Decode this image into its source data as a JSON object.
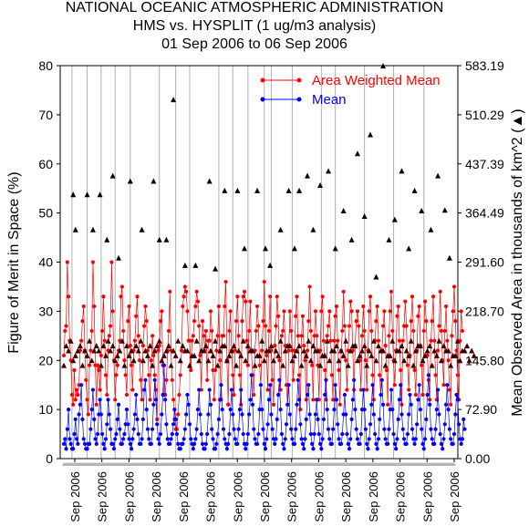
{
  "title_lines": [
    "NATIONAL OCEANIC ATMOSPHERIC ADMINISTRATION",
    "HMS vs. HYSPLIT (1 ug/m3 analysis)",
    "01 Sep 2006 to 06 Sep 2006"
  ],
  "chart_data": {
    "type": "scatter",
    "title": "NATIONAL OCEANIC ATMOSPHERIC ADMINISTRATION / HMS vs. HYSPLIT (1 ug/m3 analysis) / 01 Sep 2006 to 06 Sep 2006",
    "ylabel": "Figure of Merit in Space (%)",
    "y2label": "Mean Observed Area in thousands of km^2 (▲)",
    "ylim": [
      0,
      80
    ],
    "y2lim": [
      0,
      583.19
    ],
    "yticks": [
      "0",
      "10",
      "20",
      "30",
      "40",
      "50",
      "60",
      "70",
      "80"
    ],
    "y2ticks": [
      "0.00",
      "72.90",
      "145.80",
      "218.70",
      "291.60",
      "364.49",
      "437.39",
      "510.29",
      "583.19"
    ],
    "xtick_label": "Sep 2006",
    "xtick_count": 15,
    "legend_position": "top-right",
    "legend": [
      {
        "label": "Area Weighted Mean",
        "color": "#ff0000"
      },
      {
        "label": "Mean",
        "color": "#0000ff"
      }
    ],
    "colors": {
      "awm": "#ff0000",
      "mean": "#0000ff",
      "area": "#000000",
      "area_dark": "#3a0000",
      "rug": "#b4b4b4"
    },
    "x_count": 336,
    "series": [
      {
        "name": "Area Weighted Mean",
        "marker": "circle",
        "color": "#ff0000",
        "values": [
          21,
          26,
          27,
          40,
          33,
          24,
          20,
          13,
          11,
          18,
          12,
          14,
          13,
          15,
          22,
          24,
          28,
          31,
          22,
          16,
          12,
          9,
          19,
          22,
          26,
          40,
          31,
          19,
          11,
          19,
          18,
          14,
          21,
          26,
          33,
          24,
          17,
          13,
          22,
          25,
          27,
          40,
          30,
          20,
          12,
          17,
          19,
          22,
          24,
          33,
          35,
          26,
          20,
          17,
          13,
          28,
          31,
          23,
          19,
          14,
          22,
          24,
          29,
          33,
          25,
          20,
          16,
          12,
          23,
          27,
          31,
          28,
          22,
          17,
          12,
          20,
          25,
          21,
          17,
          14,
          8,
          22,
          23,
          28,
          30,
          19,
          13,
          13,
          16,
          22,
          26,
          34,
          22,
          16,
          12,
          8,
          6,
          6,
          9,
          13,
          17,
          22,
          31,
          33,
          35,
          34,
          30,
          24,
          24,
          18,
          24,
          25,
          28,
          31,
          34,
          32,
          27,
          21,
          14,
          28,
          25,
          22,
          26,
          16,
          24,
          24,
          30,
          26,
          18,
          12,
          18,
          22,
          25,
          31,
          20,
          12,
          25,
          25,
          31,
          36,
          20,
          11,
          26,
          30,
          22,
          17,
          13,
          22,
          28,
          33,
          25,
          17,
          11,
          28,
          33,
          34,
          32,
          24,
          19,
          26,
          32,
          22,
          17,
          13,
          22,
          26,
          31,
          27,
          19,
          15,
          22,
          28,
          36,
          27,
          21,
          14,
          26,
          33,
          22,
          16,
          11,
          23,
          27,
          33,
          29,
          20,
          14,
          25,
          26,
          30,
          23,
          15,
          11,
          22,
          30,
          26,
          22,
          16,
          22,
          29,
          33,
          25,
          17,
          10,
          25,
          29,
          23,
          20,
          12,
          22,
          28,
          35,
          26,
          19,
          12,
          25,
          30,
          25,
          19,
          12,
          22,
          30,
          33,
          24,
          18,
          12,
          25,
          27,
          30,
          24,
          17,
          12,
          24,
          29,
          31,
          24,
          18,
          11,
          22,
          26,
          34,
          27,
          20,
          14,
          22,
          27,
          32,
          30,
          22,
          14,
          23,
          28,
          30,
          27,
          20,
          14,
          25,
          31,
          26,
          20,
          14,
          22,
          30,
          33,
          26,
          17,
          12,
          24,
          28,
          31,
          24,
          17,
          13,
          22,
          27,
          30,
          23,
          18,
          11,
          25,
          30,
          34,
          26,
          20,
          15,
          22,
          29,
          31,
          24,
          18,
          11,
          24,
          27,
          32,
          27,
          19,
          14,
          21,
          28,
          33,
          26,
          18,
          13,
          22,
          29,
          31,
          23,
          19,
          13,
          26,
          32,
          28,
          21,
          16,
          12,
          24,
          28,
          33,
          24,
          17,
          12,
          22,
          27,
          34,
          26,
          20,
          15,
          26,
          31,
          24,
          20,
          14,
          11,
          25,
          30,
          35,
          28,
          22,
          17,
          12,
          24,
          30,
          26
        ]
      },
      {
        "name": "Mean",
        "marker": "circle",
        "color": "#0000ff",
        "values": [
          3,
          4,
          2,
          6,
          10,
          4,
          3,
          2,
          2,
          5,
          8,
          4,
          3,
          9,
          11,
          15,
          8,
          4,
          3,
          2,
          2,
          3,
          3,
          6,
          10,
          14,
          8,
          4,
          3,
          5,
          9,
          12,
          9,
          5,
          3,
          2,
          4,
          7,
          12,
          9,
          6,
          3,
          3,
          2,
          4,
          5,
          8,
          11,
          6,
          3,
          3,
          4,
          5,
          7,
          10,
          7,
          4,
          3,
          2,
          4,
          6,
          9,
          13,
          8,
          5,
          3,
          3,
          4,
          8,
          14,
          16,
          10,
          6,
          4,
          3,
          3,
          6,
          11,
          16,
          12,
          7,
          4,
          3,
          5,
          9,
          13,
          19,
          12,
          7,
          4,
          3,
          3,
          4,
          5,
          7,
          10,
          8,
          5,
          3,
          2,
          2,
          3,
          3,
          4,
          6,
          9,
          13,
          11,
          7,
          4,
          3,
          2,
          3,
          4,
          6,
          10,
          14,
          9,
          5,
          3,
          2,
          2,
          3,
          5,
          9,
          14,
          11,
          6,
          4,
          2,
          2,
          3,
          5,
          8,
          12,
          15,
          10,
          6,
          4,
          3,
          2,
          3,
          5,
          10,
          14,
          9,
          6,
          4,
          3,
          3,
          6,
          10,
          14,
          9,
          5,
          3,
          2,
          3,
          5,
          9,
          12,
          17,
          11,
          6,
          4,
          3,
          3,
          5,
          10,
          15,
          10,
          6,
          3,
          2,
          4,
          7,
          12,
          15,
          9,
          6,
          4,
          3,
          4,
          8,
          13,
          16,
          10,
          5,
          3,
          2,
          4,
          7,
          11,
          15,
          9,
          6,
          4,
          3,
          3,
          6,
          11,
          16,
          12,
          7,
          4,
          3,
          2,
          4,
          8,
          13,
          15,
          9,
          5,
          3,
          2,
          5,
          9,
          12,
          8,
          5,
          3,
          2,
          4,
          8,
          13,
          16,
          10,
          6,
          4,
          3,
          3,
          6,
          10,
          15,
          12,
          7,
          4,
          3,
          3,
          5,
          9,
          13,
          9,
          5,
          3,
          2,
          4,
          8,
          12,
          16,
          10,
          6,
          4,
          3,
          3,
          5,
          10,
          14,
          10,
          6,
          3,
          2,
          4,
          7,
          11,
          15,
          9,
          5,
          3,
          2,
          4,
          8,
          13,
          16,
          11,
          6,
          4,
          3,
          3,
          6,
          10,
          14,
          10,
          5,
          3,
          2,
          4,
          8,
          12,
          15,
          9,
          6,
          4,
          3,
          3,
          5,
          9,
          13,
          11,
          6,
          4,
          3,
          4,
          7,
          12,
          15,
          10,
          6,
          3,
          2,
          4,
          8,
          13,
          17,
          11,
          6,
          4,
          3,
          3,
          6,
          10,
          14,
          9,
          5,
          3,
          2,
          4,
          7,
          11,
          15,
          10,
          6,
          4,
          3,
          3,
          5,
          9,
          13,
          12,
          7,
          4,
          3,
          4,
          8,
          6
        ]
      },
      {
        "name": "Mean Observed Area",
        "marker": "triangle",
        "axis": "y2",
        "color": "#000000",
        "values": [
          19,
          26,
          23,
          18,
          22,
          29,
          24,
          17,
          20,
          26,
          21,
          16,
          22,
          27,
          23,
          18,
          19,
          25,
          22,
          17,
          21,
          28,
          24,
          18,
          20,
          26,
          22,
          17,
          23,
          27,
          22,
          18,
          19,
          26,
          23,
          17,
          21,
          28,
          24,
          19,
          22,
          27,
          23,
          18,
          20,
          25,
          21,
          16,
          22,
          29,
          24,
          18,
          19,
          26,
          23,
          17,
          21,
          27,
          22,
          18,
          20,
          26,
          23,
          17,
          22,
          28,
          24,
          19,
          20,
          25,
          22,
          16,
          21,
          27,
          23,
          18,
          19,
          26,
          22,
          17,
          23,
          28,
          24,
          18,
          20,
          25,
          21,
          17,
          22,
          27,
          23,
          18,
          19,
          26,
          22,
          17,
          21,
          28,
          24,
          19,
          20,
          26,
          23,
          17,
          22,
          27,
          22,
          18,
          19,
          25,
          21,
          16,
          21,
          27,
          24,
          18,
          20,
          26,
          22,
          17,
          22,
          28,
          23,
          19,
          20,
          25,
          22,
          17,
          21,
          27,
          24,
          18,
          19,
          26,
          22,
          16,
          23,
          28,
          23,
          18,
          20,
          25,
          21,
          17,
          22,
          27,
          23,
          18,
          19,
          26,
          22,
          17,
          21,
          28,
          24,
          19,
          20,
          26,
          23,
          17,
          22,
          27,
          22,
          18,
          19,
          25,
          21,
          16,
          21,
          27,
          24,
          18,
          20,
          26,
          22,
          17,
          22,
          28,
          23,
          19,
          20,
          25,
          22,
          17,
          21,
          27,
          24,
          18,
          19,
          26,
          22,
          16,
          23,
          28,
          23,
          18,
          20,
          25,
          21,
          17,
          22,
          27,
          23,
          18,
          19,
          26,
          22,
          17,
          21,
          28,
          24,
          19,
          20,
          26,
          23,
          17,
          22,
          27,
          22,
          18,
          19,
          25,
          21,
          16,
          21,
          27,
          24,
          18,
          20,
          26,
          22,
          17,
          22,
          28,
          23,
          19,
          20,
          25,
          22,
          17,
          21,
          27,
          24,
          18,
          19,
          26,
          22,
          16,
          23,
          28,
          23,
          18,
          20,
          25,
          21,
          17,
          22,
          27,
          23,
          18,
          19,
          26,
          22,
          17,
          21,
          28,
          24,
          19,
          20,
          26,
          23,
          17,
          22,
          27,
          22,
          18,
          19,
          25,
          21,
          16,
          21,
          27,
          24,
          18,
          20,
          26,
          22,
          17,
          22,
          28,
          23,
          19,
          20,
          25,
          22,
          17,
          21,
          27,
          24,
          18,
          19,
          26,
          22,
          16,
          23,
          28,
          23,
          18,
          20,
          25,
          21,
          17,
          22,
          27,
          23,
          18,
          19,
          26,
          22,
          17,
          21,
          28,
          24,
          19,
          20,
          26,
          23,
          17,
          22,
          27,
          22,
          18,
          19,
          25,
          21,
          16,
          21,
          27,
          24,
          18,
          20,
          26,
          22,
          17,
          22,
          28,
          23,
          19,
          20,
          25,
          22,
          17,
          21,
          27
        ]
      },
      {
        "name": "Mean Observed Area (high)",
        "marker": "triangle",
        "axis": "y2",
        "color": "#000000",
        "points": [
          [
            8,
            392
          ],
          [
            10,
            340
          ],
          [
            20,
            392
          ],
          [
            25,
            340
          ],
          [
            31,
            392
          ],
          [
            37,
            325
          ],
          [
            42,
            420
          ],
          [
            47,
            298
          ],
          [
            57,
            412
          ],
          [
            67,
            340
          ],
          [
            77,
            412
          ],
          [
            82,
            325
          ],
          [
            88,
            325
          ],
          [
            94,
            533
          ],
          [
            104,
            287
          ],
          [
            113,
            287
          ],
          [
            125,
            412
          ],
          [
            130,
            282
          ],
          [
            138,
            398
          ],
          [
            149,
            398
          ],
          [
            155,
            312
          ],
          [
            166,
            398
          ],
          [
            173,
            312
          ],
          [
            177,
            287
          ],
          [
            186,
            340
          ],
          [
            193,
            398
          ],
          [
            198,
            312
          ],
          [
            202,
            398
          ],
          [
            209,
            420
          ],
          [
            214,
            340
          ],
          [
            220,
            406
          ],
          [
            227,
            427
          ],
          [
            233,
            312
          ],
          [
            240,
            368
          ],
          [
            247,
            325
          ],
          [
            252,
            453
          ],
          [
            258,
            360
          ],
          [
            263,
            481
          ],
          [
            268,
            270
          ],
          [
            274,
            583
          ],
          [
            279,
            325
          ],
          [
            284,
            355
          ],
          [
            290,
            427
          ],
          [
            296,
            312
          ],
          [
            301,
            398
          ],
          [
            307,
            368
          ],
          [
            315,
            340
          ],
          [
            321,
            420
          ],
          [
            327,
            369
          ],
          [
            331,
            298
          ]
        ]
      },
      {
        "name": "Rug",
        "marker": "triangle",
        "axis": "y",
        "color": "#b4b4b4",
        "values": [
          0
        ]
      }
    ],
    "vertical_lines_x_index": [
      7,
      20,
      32,
      44,
      57,
      82,
      96,
      108,
      133,
      145,
      158,
      172,
      178,
      196,
      221,
      233,
      258,
      283,
      309
    ]
  }
}
